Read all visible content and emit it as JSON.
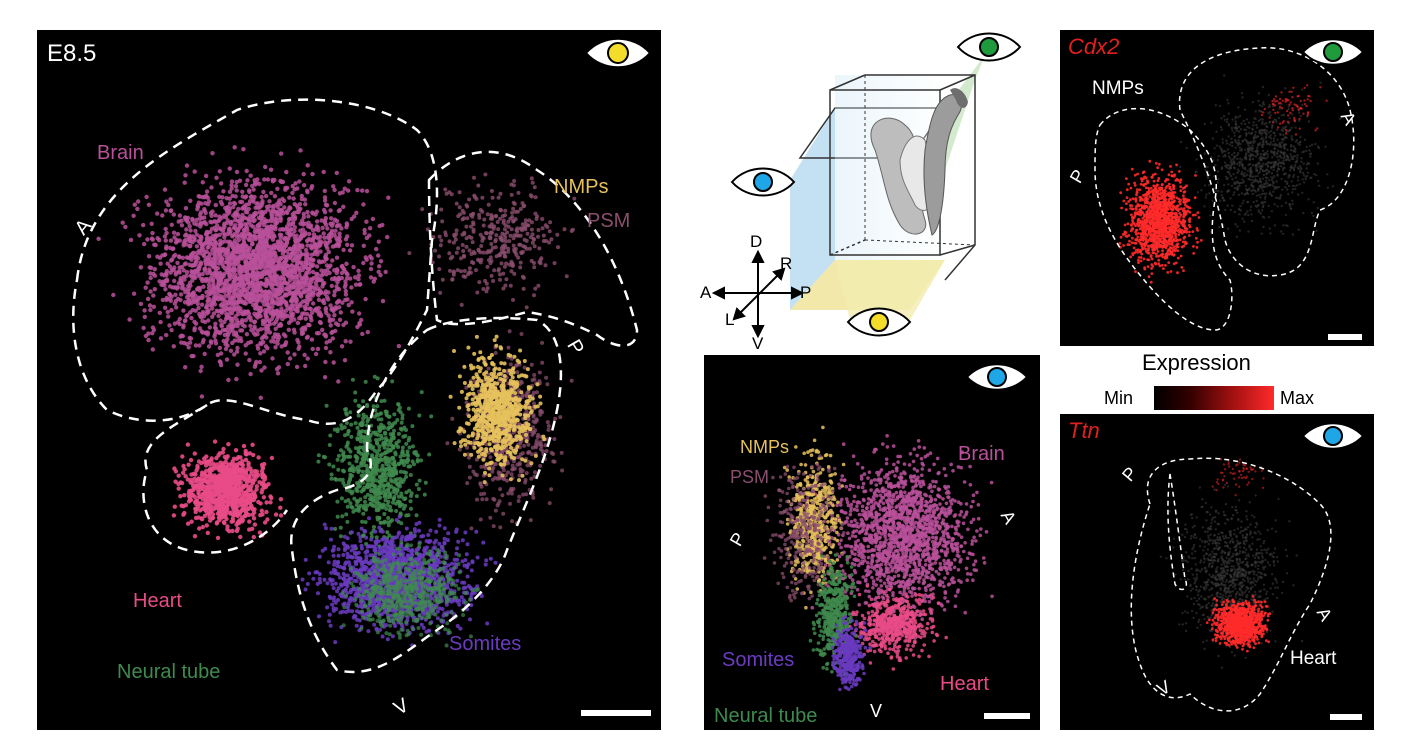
{
  "colors": {
    "brain": "#b8509a",
    "heart": "#e94b87",
    "psm": "#8a4e6e",
    "nmps": "#e6c15c",
    "neural_tube": "#3f8a4e",
    "somites": "#6a3bc0",
    "expression": "#ff2a2a",
    "eye_yellow": "#f4dc2a",
    "eye_green": "#1f9a3c",
    "eye_blue": "#1ea6e6"
  },
  "icons": {
    "eye_yellow": "eye-yellow-icon",
    "eye_green": "eye-green-icon",
    "eye_blue": "eye-blue-icon",
    "axes": "axes-compass-icon",
    "embryo": "embryo-box-icon"
  },
  "main": {
    "stage": "E8.5",
    "labels": {
      "brain": "Brain",
      "nmps": "NMPs",
      "psm": "PSM",
      "heart": "Heart",
      "neural_tube": "Neural tube",
      "somites": "Somites"
    },
    "axis": {
      "a": "A",
      "p": "P",
      "v": "V"
    }
  },
  "schematic": {
    "axes": {
      "d": "D",
      "r": "R",
      "a": "A",
      "p": "P",
      "l": "L",
      "v": "V"
    }
  },
  "side": {
    "labels": {
      "nmps": "NMPs",
      "psm": "PSM",
      "brain": "Brain",
      "somites": "Somites",
      "heart": "Heart",
      "neural_tube": "Neural tube"
    },
    "axis": {
      "p": "P",
      "a": "A",
      "v": "V"
    }
  },
  "cdx2": {
    "gene": "Cdx2",
    "nmps": "NMPs",
    "axis": {
      "p": "P",
      "a": "A"
    }
  },
  "legend": {
    "title": "Expression",
    "min": "Min",
    "max": "Max"
  },
  "ttn": {
    "gene": "Ttn",
    "heart": "Heart",
    "axis": {
      "p": "P",
      "a": "A",
      "v": "V"
    }
  }
}
